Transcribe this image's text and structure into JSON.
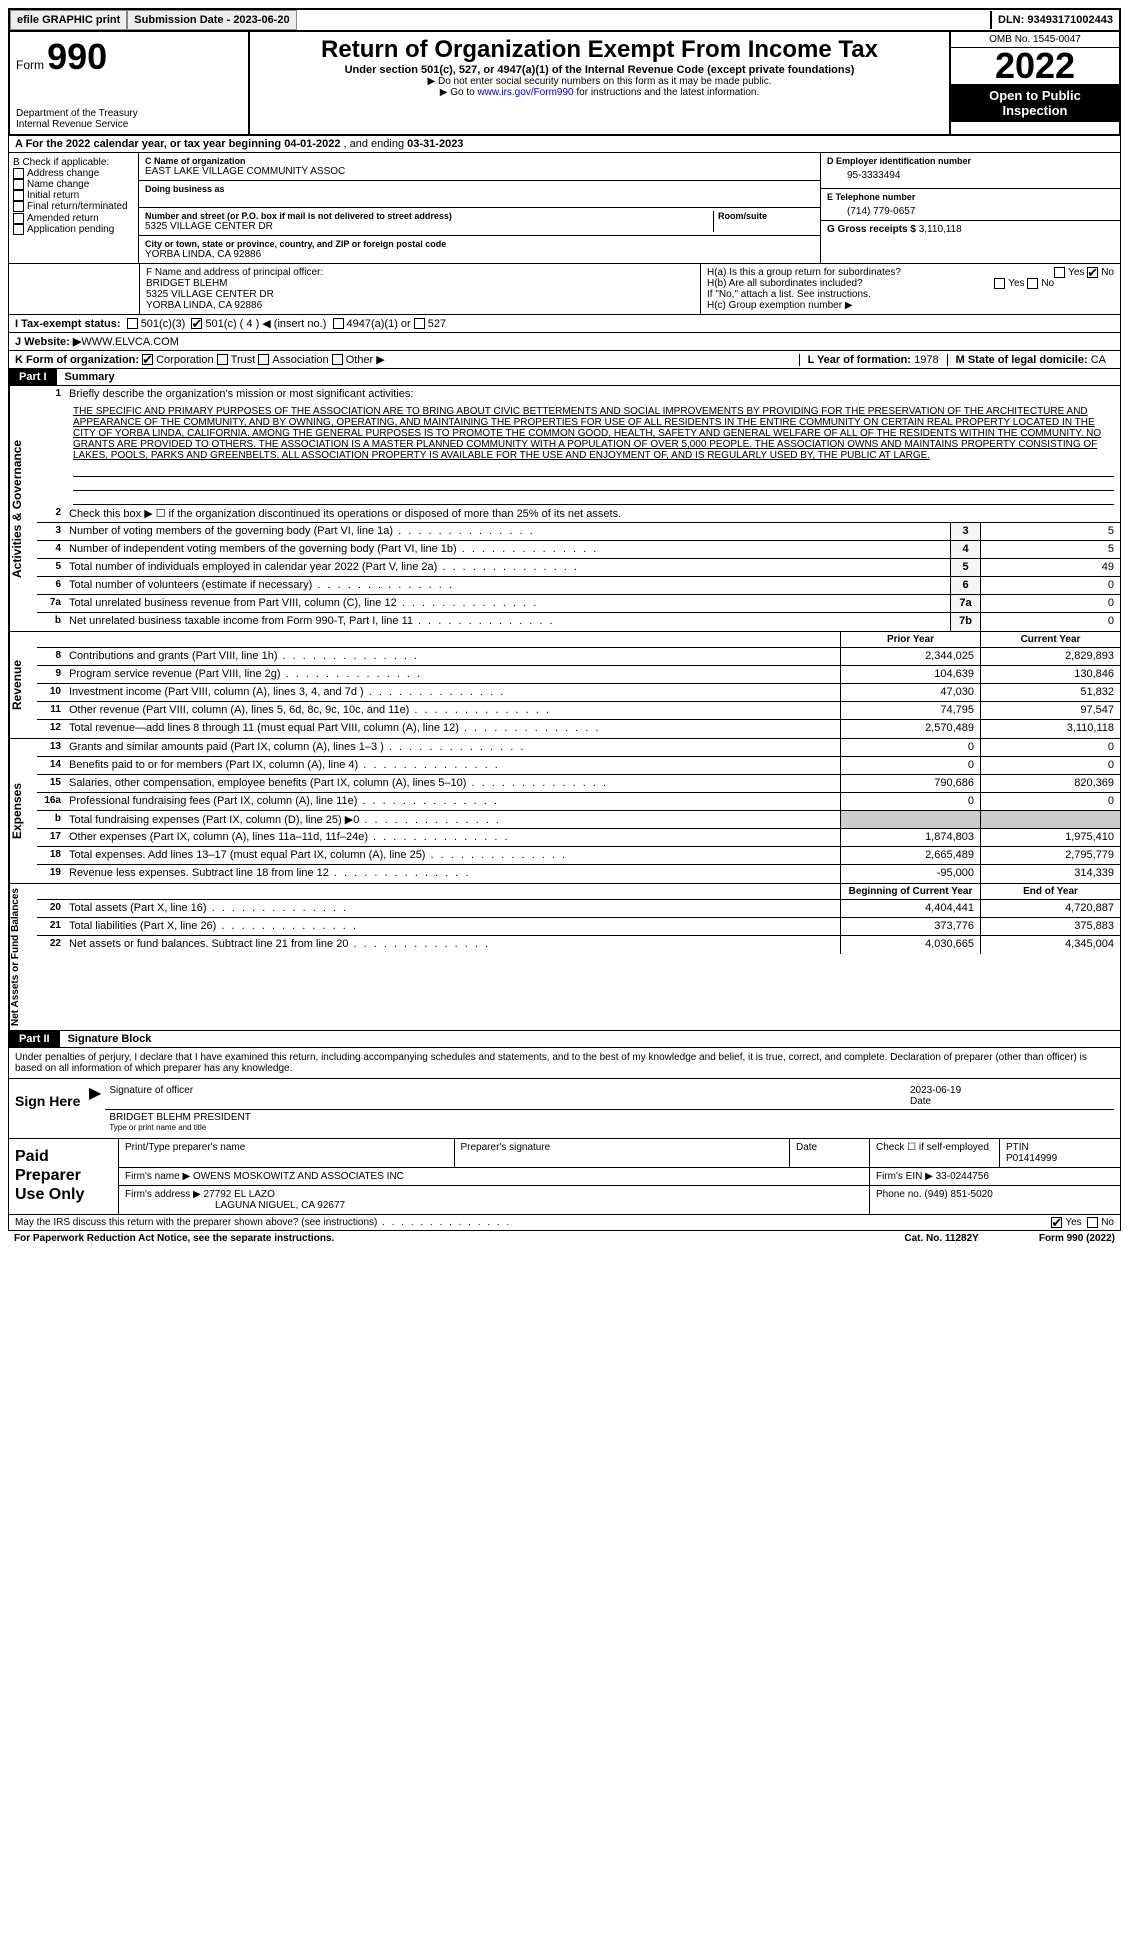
{
  "topbar": {
    "efile": "efile GRAPHIC print",
    "submission": "Submission Date - 2023-06-20",
    "dln": "DLN: 93493171002443"
  },
  "header": {
    "form_word": "Form",
    "form_num": "990",
    "dept": "Department of the Treasury",
    "irs": "Internal Revenue Service",
    "title": "Return of Organization Exempt From Income Tax",
    "subtitle": "Under section 501(c), 527, or 4947(a)(1) of the Internal Revenue Code (except private foundations)",
    "note1": "▶ Do not enter social security numbers on this form as it may be made public.",
    "note2_a": "▶ Go to ",
    "note2_link": "www.irs.gov/Form990",
    "note2_b": " for instructions and the latest information.",
    "omb": "OMB No. 1545-0047",
    "year": "2022",
    "open": "Open to Public Inspection"
  },
  "rowA": {
    "text_a": "A For the 2022 calendar year, or tax year beginning ",
    "begin": "04-01-2022",
    "text_b": "  , and ending ",
    "end": "03-31-2023"
  },
  "sectionB": {
    "label": "B Check if applicable:",
    "opts": [
      "Address change",
      "Name change",
      "Initial return",
      "Final return/terminated",
      "Amended return",
      "Application pending"
    ]
  },
  "sectionC": {
    "label": "C Name of organization",
    "name": "EAST LAKE VILLAGE COMMUNITY ASSOC",
    "dba_label": "Doing business as",
    "street_label": "Number and street (or P.O. box if mail is not delivered to street address)",
    "room_label": "Room/suite",
    "street": "5325 VILLAGE CENTER DR",
    "city_label": "City or town, state or province, country, and ZIP or foreign postal code",
    "city": "YORBA LINDA, CA  92886"
  },
  "sectionD": {
    "label": "D Employer identification number",
    "ein": "95-3333494"
  },
  "sectionE": {
    "label": "E Telephone number",
    "phone": "(714) 779-0657"
  },
  "sectionG": {
    "label": "G Gross receipts $",
    "amount": "3,110,118"
  },
  "sectionF": {
    "label": "F  Name and address of principal officer:",
    "name": "BRIDGET BLEHM",
    "addr1": "5325 VILLAGE CENTER DR",
    "addr2": "YORBA LINDA, CA  92886"
  },
  "sectionH": {
    "ha": "H(a)  Is this a group return for subordinates?",
    "hb": "H(b)  Are all subordinates included?",
    "hb_note": "If \"No,\" attach a list. See instructions.",
    "hc": "H(c)  Group exemption number ▶"
  },
  "sectionI": {
    "label": "I  Tax-exempt status:",
    "c3": "501(c)(3)",
    "c_other": "501(c) ( 4 ) ◀ (insert no.)",
    "a1": "4947(a)(1) or",
    "s527": "527"
  },
  "sectionJ": {
    "label": "J  Website: ▶",
    "url": " WWW.ELVCA.COM"
  },
  "sectionK": {
    "label": "K Form of organization:",
    "corp": "Corporation",
    "trust": "Trust",
    "assoc": "Association",
    "other": "Other ▶"
  },
  "sectionL": {
    "label": "L Year of formation:",
    "year": "1978"
  },
  "sectionM": {
    "label": "M State of legal domicile:",
    "state": "CA"
  },
  "parts": {
    "i": "Part I",
    "i_title": "Summary",
    "ii": "Part II",
    "ii_title": "Signature Block"
  },
  "summary": {
    "side_activities": "Activities & Governance",
    "side_revenue": "Revenue",
    "side_expenses": "Expenses",
    "side_net": "Net Assets or Fund Balances",
    "line1_label": "Briefly describe the organization's mission or most significant activities:",
    "mission": "THE SPECIFIC AND PRIMARY PURPOSES OF THE ASSOCIATION ARE TO BRING ABOUT CIVIC BETTERMENTS AND SOCIAL IMPROVEMENTS BY PROVIDING FOR THE PRESERVATION OF THE ARCHITECTURE AND APPEARANCE OF THE COMMUNITY, AND BY OWNING, OPERATING, AND MAINTAINING THE PROPERTIES FOR USE OF ALL RESIDENTS IN THE ENTIRE COMMUNITY ON CERTAIN REAL PROPERTY LOCATED IN THE CITY OF YORBA LINDA, CALIFORNIA. AMONG THE GENERAL PURPOSES IS TO PROMOTE THE COMMON GOOD, HEALTH, SAFETY AND GENERAL WELFARE OF ALL OF THE RESIDENTS WITHIN THE COMMUNITY. NO GRANTS ARE PROVIDED TO OTHERS. THE ASSOCIATION IS A MASTER PLANNED COMMUNITY WITH A POPULATION OF OVER 5,000 PEOPLE. THE ASSOCIATION OWNS AND MAINTAINS PROPERTY CONSISTING OF LAKES, POOLS, PARKS AND GREENBELTS. ALL ASSOCIATION PROPERTY IS AVAILABLE FOR THE USE AND ENJOYMENT OF, AND IS REGULARLY USED BY, THE PUBLIC AT LARGE.",
    "line2": "Check this box ▶ ☐ if the organization discontinued its operations or disposed of more than 25% of its net assets.",
    "rows_gov": [
      {
        "n": "3",
        "d": "Number of voting members of the governing body (Part VI, line 1a)",
        "b": "3",
        "v": "5"
      },
      {
        "n": "4",
        "d": "Number of independent voting members of the governing body (Part VI, line 1b)",
        "b": "4",
        "v": "5"
      },
      {
        "n": "5",
        "d": "Total number of individuals employed in calendar year 2022 (Part V, line 2a)",
        "b": "5",
        "v": "49"
      },
      {
        "n": "6",
        "d": "Total number of volunteers (estimate if necessary)",
        "b": "6",
        "v": "0"
      },
      {
        "n": "7a",
        "d": "Total unrelated business revenue from Part VIII, column (C), line 12",
        "b": "7a",
        "v": "0"
      },
      {
        "n": "b",
        "d": "Net unrelated business taxable income from Form 990-T, Part I, line 11",
        "b": "7b",
        "v": "0"
      }
    ],
    "col_prior": "Prior Year",
    "col_current": "Current Year",
    "rows_rev": [
      {
        "n": "8",
        "d": "Contributions and grants (Part VIII, line 1h)",
        "p": "2,344,025",
        "c": "2,829,893"
      },
      {
        "n": "9",
        "d": "Program service revenue (Part VIII, line 2g)",
        "p": "104,639",
        "c": "130,846"
      },
      {
        "n": "10",
        "d": "Investment income (Part VIII, column (A), lines 3, 4, and 7d )",
        "p": "47,030",
        "c": "51,832"
      },
      {
        "n": "11",
        "d": "Other revenue (Part VIII, column (A), lines 5, 6d, 8c, 9c, 10c, and 11e)",
        "p": "74,795",
        "c": "97,547"
      },
      {
        "n": "12",
        "d": "Total revenue—add lines 8 through 11 (must equal Part VIII, column (A), line 12)",
        "p": "2,570,489",
        "c": "3,110,118"
      }
    ],
    "rows_exp": [
      {
        "n": "13",
        "d": "Grants and similar amounts paid (Part IX, column (A), lines 1–3 )",
        "p": "0",
        "c": "0"
      },
      {
        "n": "14",
        "d": "Benefits paid to or for members (Part IX, column (A), line 4)",
        "p": "0",
        "c": "0"
      },
      {
        "n": "15",
        "d": "Salaries, other compensation, employee benefits (Part IX, column (A), lines 5–10)",
        "p": "790,686",
        "c": "820,369"
      },
      {
        "n": "16a",
        "d": "Professional fundraising fees (Part IX, column (A), line 11e)",
        "p": "0",
        "c": "0"
      },
      {
        "n": "b",
        "d": "Total fundraising expenses (Part IX, column (D), line 25) ▶0",
        "p": "shade",
        "c": "shade"
      },
      {
        "n": "17",
        "d": "Other expenses (Part IX, column (A), lines 11a–11d, 11f–24e)",
        "p": "1,874,803",
        "c": "1,975,410"
      },
      {
        "n": "18",
        "d": "Total expenses. Add lines 13–17 (must equal Part IX, column (A), line 25)",
        "p": "2,665,489",
        "c": "2,795,779"
      },
      {
        "n": "19",
        "d": "Revenue less expenses. Subtract line 18 from line 12",
        "p": "-95,000",
        "c": "314,339"
      }
    ],
    "col_begin": "Beginning of Current Year",
    "col_end": "End of Year",
    "rows_net": [
      {
        "n": "20",
        "d": "Total assets (Part X, line 16)",
        "p": "4,404,441",
        "c": "4,720,887"
      },
      {
        "n": "21",
        "d": "Total liabilities (Part X, line 26)",
        "p": "373,776",
        "c": "375,883"
      },
      {
        "n": "22",
        "d": "Net assets or fund balances. Subtract line 21 from line 20",
        "p": "4,030,665",
        "c": "4,345,004"
      }
    ]
  },
  "sig": {
    "perjury": "Under penalties of perjury, I declare that I have examined this return, including accompanying schedules and statements, and to the best of my knowledge and belief, it is true, correct, and complete. Declaration of preparer (other than officer) is based on all information of which preparer has any knowledge.",
    "sign_here": "Sign Here",
    "sig_officer": "Signature of officer",
    "date_label": "Date",
    "date": "2023-06-19",
    "name_title": "BRIDGET BLEHM  PRESIDENT",
    "type_label": "Type or print name and title"
  },
  "paid": {
    "title": "Paid Preparer Use Only",
    "print_name": "Print/Type preparer's name",
    "prep_sig": "Preparer's signature",
    "date": "Date",
    "check_self": "Check ☐ if self-employed",
    "ptin_label": "PTIN",
    "ptin": "P01414999",
    "firm_name_label": "Firm's name    ▶",
    "firm_name": "OWENS MOSKOWITZ AND ASSOCIATES INC",
    "firm_ein_label": "Firm's EIN ▶",
    "firm_ein": "33-0244756",
    "firm_addr_label": "Firm's address ▶",
    "firm_addr1": "27792 EL LAZO",
    "firm_addr2": "LAGUNA NIGUEL, CA  92677",
    "phone_label": "Phone no.",
    "phone": "(949) 851-5020"
  },
  "footer": {
    "discuss": "May the IRS discuss this return with the preparer shown above? (see instructions)",
    "yes": "Yes",
    "no": "No",
    "paperwork": "For Paperwork Reduction Act Notice, see the separate instructions.",
    "cat": "Cat. No. 11282Y",
    "form": "Form 990 (2022)"
  }
}
